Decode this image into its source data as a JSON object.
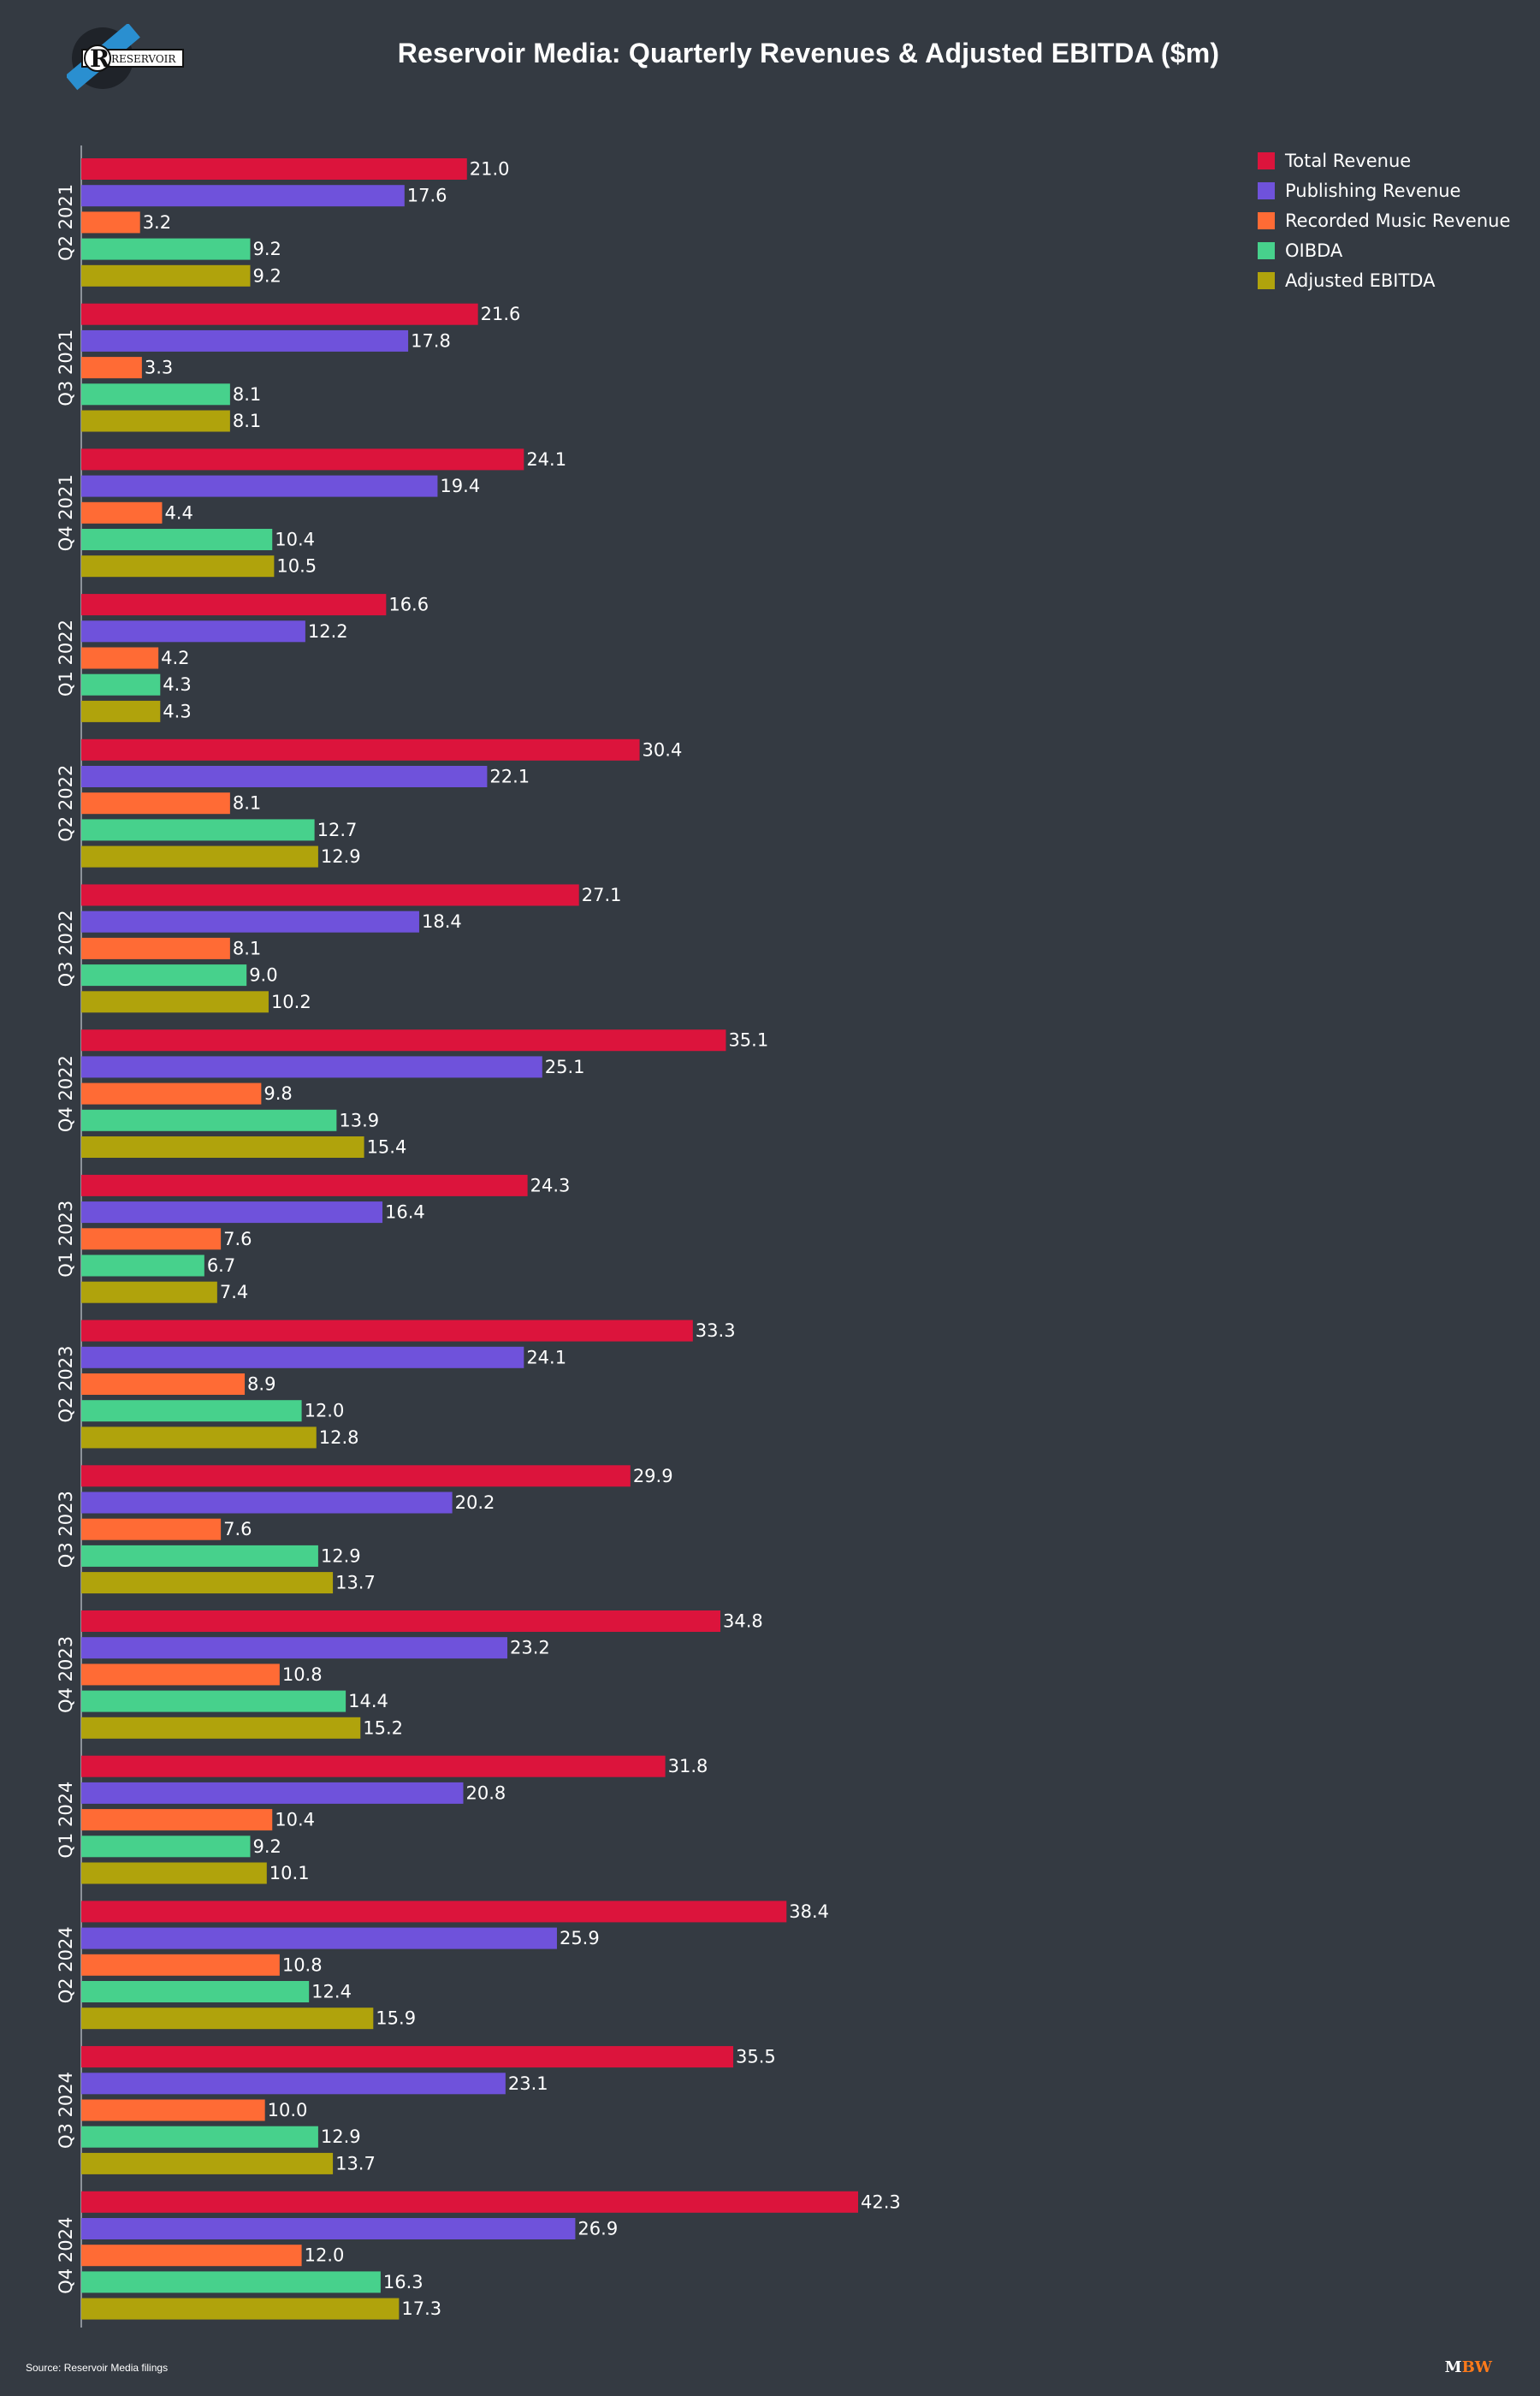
{
  "header": {
    "title": "Reservoir Media: Quarterly Revenues & Adjusted EBITDA ($m)",
    "logo_text": "RESERVOIR"
  },
  "footer": {
    "source": "Source: Reservoir Media filings",
    "brand_m": "M",
    "brand_bw": "BW"
  },
  "colors": {
    "background": "#343a42",
    "Total Revenue": "#dc143c",
    "Publishing Revenue": "#6f52db",
    "Recorded Music Revenue": "#ff6b35",
    "OIBDA": "#47d18c",
    "Adjusted EBITDA": "#b0a30c"
  },
  "chart_data": {
    "type": "bar",
    "orientation": "horizontal",
    "title": "Reservoir Media: Quarterly Revenues & Adjusted EBITDA ($m)",
    "categories": [
      "Q2 2021",
      "Q3 2021",
      "Q4 2021",
      "Q1 2022",
      "Q2 2022",
      "Q3 2022",
      "Q4 2022",
      "Q1 2023",
      "Q2 2023",
      "Q3 2023",
      "Q4 2023",
      "Q1 2024",
      "Q2 2024",
      "Q3 2024",
      "Q4 2024"
    ],
    "series": [
      {
        "name": "Total Revenue",
        "values": [
          21.0,
          21.6,
          24.1,
          16.6,
          30.4,
          27.1,
          35.1,
          24.3,
          33.3,
          29.9,
          34.8,
          31.8,
          38.4,
          35.5,
          42.3
        ]
      },
      {
        "name": "Publishing Revenue",
        "values": [
          17.6,
          17.8,
          19.4,
          12.2,
          22.1,
          18.4,
          25.1,
          16.4,
          24.1,
          20.2,
          23.2,
          20.8,
          25.9,
          23.1,
          26.9
        ]
      },
      {
        "name": "Recorded Music Revenue",
        "values": [
          3.2,
          3.3,
          4.4,
          4.2,
          8.1,
          8.1,
          9.8,
          7.6,
          8.9,
          7.6,
          10.8,
          10.4,
          10.8,
          10.0,
          12.0
        ]
      },
      {
        "name": "OIBDA",
        "values": [
          9.2,
          8.1,
          10.4,
          4.3,
          12.7,
          9.0,
          13.9,
          6.7,
          12.0,
          12.9,
          14.4,
          9.2,
          12.4,
          12.9,
          16.3
        ]
      },
      {
        "name": "Adjusted EBITDA",
        "values": [
          9.2,
          8.1,
          10.5,
          4.3,
          12.9,
          10.2,
          15.4,
          7.4,
          12.8,
          13.7,
          15.2,
          10.1,
          15.9,
          13.7,
          17.3
        ]
      }
    ],
    "xlim": [
      0,
      45
    ],
    "grid": false,
    "legend_position": "top-right",
    "data_labels": true
  }
}
